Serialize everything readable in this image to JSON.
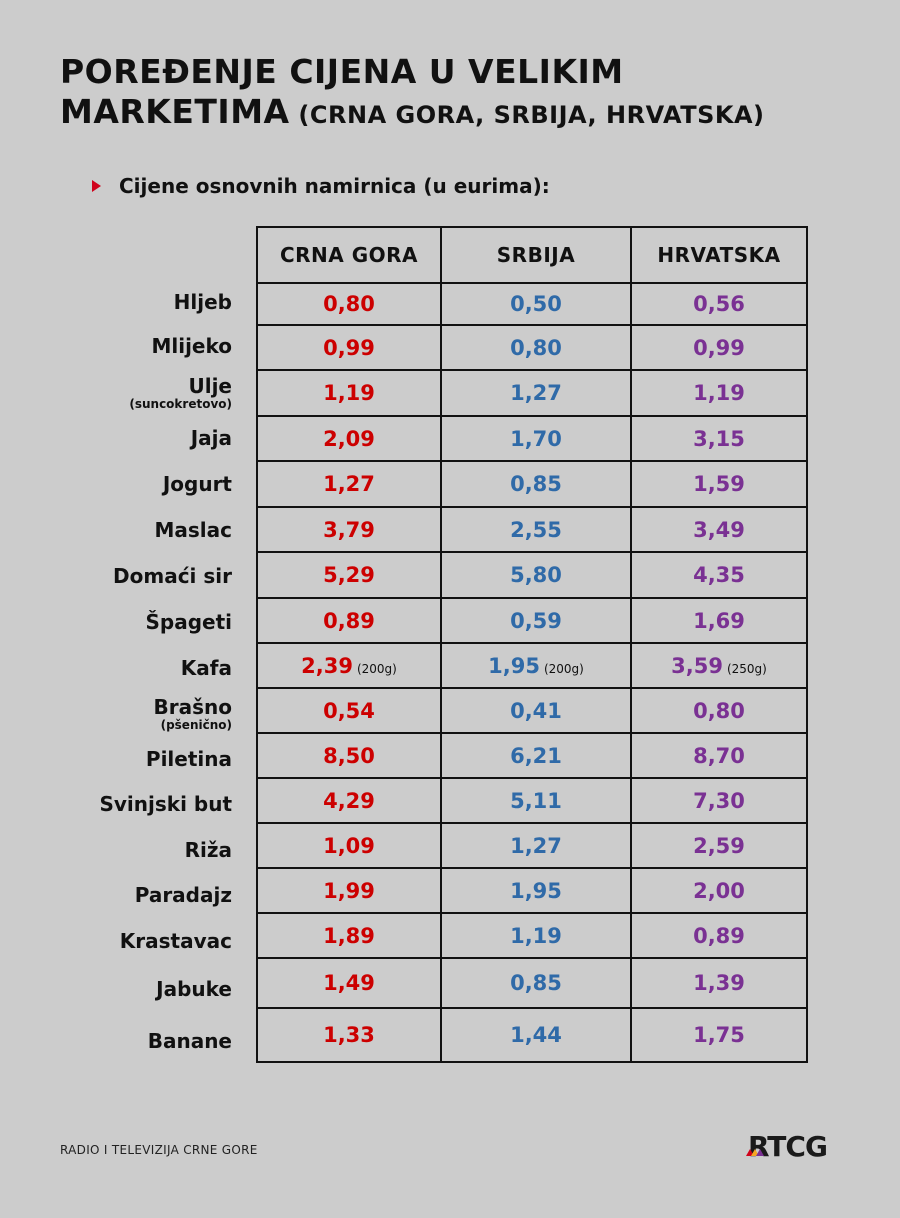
{
  "title": {
    "line1": "POREĐENJE CIJENA U VELIKIM",
    "line2_main": "MARKETIMA",
    "line2_sub": " (CRNA GORA, SRBIJA, HRVATSKA)"
  },
  "subtitle": "Cijene osnovnih namirnica (u eurima):",
  "colors": {
    "crna_gora": "#cc0000",
    "srbija": "#2f6aa8",
    "hrvatska": "#7a3193",
    "bullet": "#d0021b",
    "background": "#cccccc"
  },
  "table": {
    "headers": [
      "CRNA GORA",
      "SRBIJA",
      "HRVATSKA"
    ],
    "rows": [
      {
        "item": "Hljeb",
        "note": "",
        "me": "0,80",
        "rs": "0,50",
        "hr": "0,56"
      },
      {
        "item": "Mlijeko",
        "note": "",
        "me": "0,99",
        "rs": "0,80",
        "hr": "0,99"
      },
      {
        "item": "Ulje",
        "note": "(suncokretovo)",
        "me": "1,19",
        "rs": "1,27",
        "hr": "1,19"
      },
      {
        "item": "Jaja",
        "note": "",
        "me": "2,09",
        "rs": "1,70",
        "hr": "3,15"
      },
      {
        "item": "Jogurt",
        "note": "",
        "me": "1,27",
        "rs": "0,85",
        "hr": "1,59"
      },
      {
        "item": "Maslac",
        "note": "",
        "me": "3,79",
        "rs": "2,55",
        "hr": "3,49"
      },
      {
        "item": "Domaći sir",
        "note": "",
        "me": "5,29",
        "rs": "5,80",
        "hr": "4,35"
      },
      {
        "item": "Špageti",
        "note": "",
        "me": "0,89",
        "rs": "0,59",
        "hr": "1,69"
      },
      {
        "item": "Kafa",
        "note": "",
        "me": "2,39",
        "me_unit": "(200g)",
        "rs": "1,95",
        "rs_unit": "(200g)",
        "hr": "3,59",
        "hr_unit": "(250g)"
      },
      {
        "item": "Brašno",
        "note": "(pšenično)",
        "me": "0,54",
        "rs": "0,41",
        "hr": "0,80"
      },
      {
        "item": "Piletina",
        "note": "",
        "me": "8,50",
        "rs": "6,21",
        "hr": "8,70"
      },
      {
        "item": "Svinjski but",
        "note": "",
        "me": "4,29",
        "rs": "5,11",
        "hr": "7,30"
      },
      {
        "item": "Riža",
        "note": "",
        "me": "1,09",
        "rs": "1,27",
        "hr": "2,59"
      },
      {
        "item": "Paradajz",
        "note": "",
        "me": "1,99",
        "rs": "1,95",
        "hr": "2,00"
      },
      {
        "item": "Krastavac",
        "note": "",
        "me": "1,89",
        "rs": "1,19",
        "hr": "0,89"
      },
      {
        "item": "Jabuke",
        "note": "",
        "me": "1,49",
        "rs": "0,85",
        "hr": "1,39"
      },
      {
        "item": "Banane",
        "note": "",
        "me": "1,33",
        "rs": "1,44",
        "hr": "1,75"
      }
    ]
  },
  "footer": {
    "left": "RADIO I TELEVIZIJA CRNE GORE",
    "logo": "RTCG"
  }
}
